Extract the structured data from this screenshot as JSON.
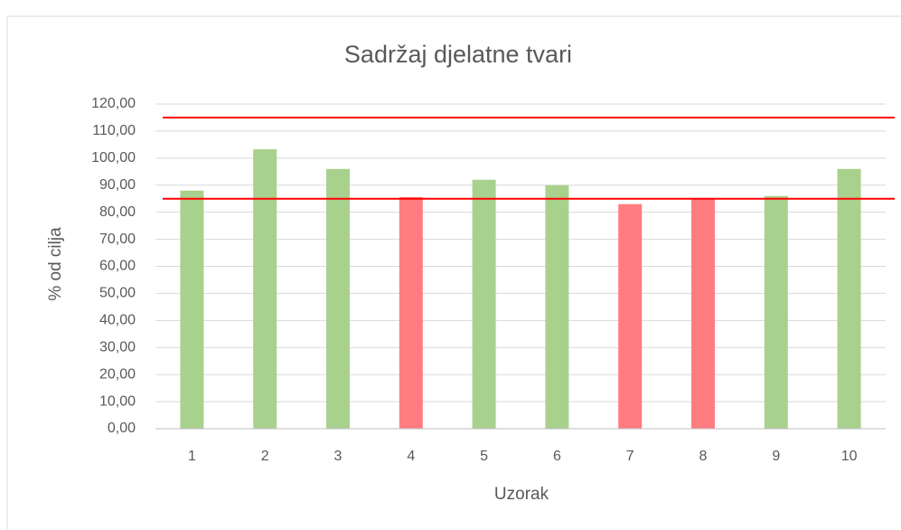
{
  "chart_data": {
    "type": "bar",
    "title": "Sadržaj djelatne tvari",
    "x_label": "Uzorak",
    "y_label": "% od cilja",
    "categories": [
      "1",
      "2",
      "3",
      "4",
      "5",
      "6",
      "7",
      "8",
      "9",
      "10"
    ],
    "values": [
      88,
      103.3,
      96,
      85.6,
      92,
      90,
      83,
      85,
      86,
      96
    ],
    "colors": [
      "#a9d18e",
      "#a9d18e",
      "#a9d18e",
      "#ff7c80",
      "#a9d18e",
      "#a9d18e",
      "#ff7c80",
      "#ff7c80",
      "#a9d18e",
      "#a9d18e"
    ],
    "reference_lines": [
      115,
      85
    ],
    "reference_color": "#ff0000",
    "ylim": [
      0,
      120
    ],
    "yticks": [
      {
        "value": 0,
        "label": "0,00"
      },
      {
        "value": 10,
        "label": "10,00"
      },
      {
        "value": 20,
        "label": "20,00"
      },
      {
        "value": 30,
        "label": "30,00"
      },
      {
        "value": 40,
        "label": "40,00"
      },
      {
        "value": 50,
        "label": "50,00"
      },
      {
        "value": 60,
        "label": "60,00"
      },
      {
        "value": 70,
        "label": "70,00"
      },
      {
        "value": 80,
        "label": "80,00"
      },
      {
        "value": 90,
        "label": "90,00"
      },
      {
        "value": 100,
        "label": "100,00"
      },
      {
        "value": 110,
        "label": "110,00"
      },
      {
        "value": 120,
        "label": "120,00"
      }
    ],
    "grid": true
  }
}
